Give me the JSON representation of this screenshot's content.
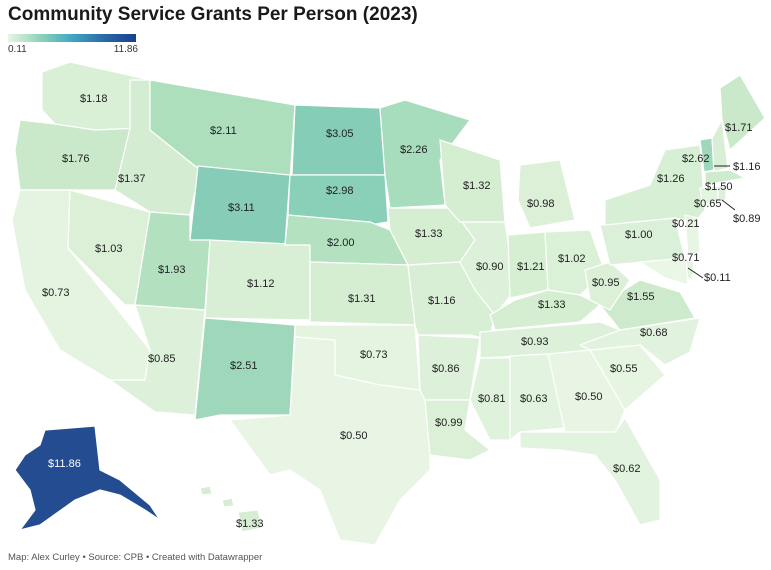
{
  "title": "Community Service Grants Per Person (2023)",
  "legend": {
    "min": "0.11",
    "max": "11.86"
  },
  "colors": {
    "low": "#e8f5e4",
    "high": "#1c3f8e"
  },
  "states": {
    "WA": "$1.18",
    "OR": "$1.76",
    "CA": "$0.73",
    "NV": "$1.03",
    "ID": "$1.37",
    "MT": "$2.11",
    "WY": "$3.11",
    "UT": "$1.93",
    "AZ": "$0.85",
    "CO": "$1.12",
    "NM": "$2.51",
    "ND": "$3.05",
    "SD": "$2.98",
    "NE": "$2.00",
    "KS": "$1.31",
    "OK": "$0.73",
    "TX": "$0.50",
    "MN": "$2.26",
    "IA": "$1.33",
    "MO": "$1.16",
    "AR": "$0.86",
    "LA": "$0.99",
    "WI": "$1.32",
    "IL": "$0.90",
    "MI": "$0.98",
    "IN": "$1.21",
    "OH": "$1.02",
    "KY": "$1.33",
    "TN": "$0.93",
    "MS": "$0.81",
    "AL": "$0.63",
    "GA": "$0.50",
    "FL": "$0.62",
    "SC": "$0.55",
    "NC": "$0.68",
    "VA": "$1.55",
    "WV": "$0.95",
    "PA": "$1.00",
    "NY": "$1.26",
    "VT": "$2.62",
    "NH": "$1.16",
    "ME": "$1.71",
    "MA": "$1.50",
    "CT": "$0.65",
    "RI": "$0.89",
    "NJ": "$0.21",
    "DE": "$0.71",
    "MD": "$0.11",
    "AK": "$11.86",
    "HI": "$1.33"
  },
  "footer": "Map: Alex Curley • Source: CPB • Created with Datawrapper"
}
